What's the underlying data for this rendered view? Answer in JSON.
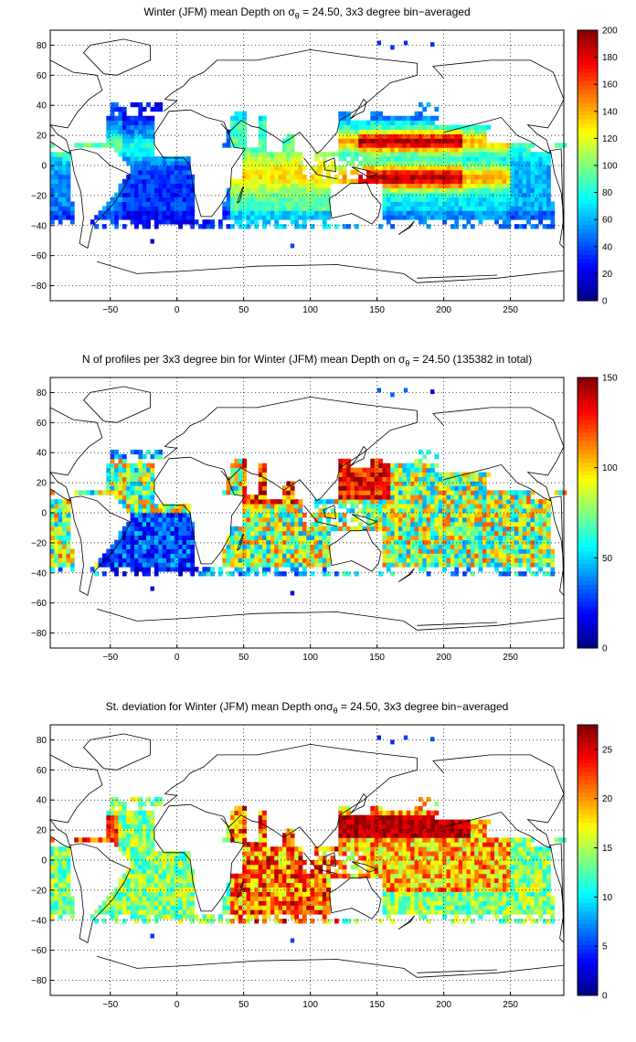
{
  "panels": [
    {
      "title_pre": "Winter (JFM) mean Depth on σ",
      "title_sub": "θ",
      "title_post": " = 24.50, 3x3 degree bin−averaged",
      "colorbar": {
        "ticks": [
          "0",
          "20",
          "40",
          "60",
          "80",
          "100",
          "120",
          "140",
          "160",
          "180",
          "200"
        ],
        "min": 0,
        "max": 200
      },
      "field": "depth"
    },
    {
      "title_pre": "N of profiles per 3x3 degree bin for Winter (JFM) mean Depth on σ",
      "title_sub": "θ",
      "title_post": " = 24.50 (135382 in total)",
      "colorbar": {
        "ticks": [
          "0",
          "50",
          "100",
          "150"
        ],
        "min": 0,
        "max": 150
      },
      "field": "count"
    },
    {
      "title_pre": "St. deviation for Winter (JFM) mean Depth onσ",
      "title_sub": "θ",
      "title_post": " = 24.50, 3x3 degree bin−averaged",
      "colorbar": {
        "ticks": [
          "0",
          "5",
          "10",
          "15",
          "20",
          "25"
        ],
        "min": 0,
        "max": 27.5
      },
      "field": "std"
    }
  ],
  "map": {
    "x_ticks": [
      "−50",
      "0",
      "50",
      "100",
      "150",
      "200",
      "250"
    ],
    "y_ticks": [
      "80",
      "60",
      "40",
      "20",
      "0",
      "−20",
      "−40",
      "−60",
      "−80"
    ],
    "lon_range": [
      -95,
      290
    ],
    "lat_range": [
      -90,
      90
    ]
  }
}
